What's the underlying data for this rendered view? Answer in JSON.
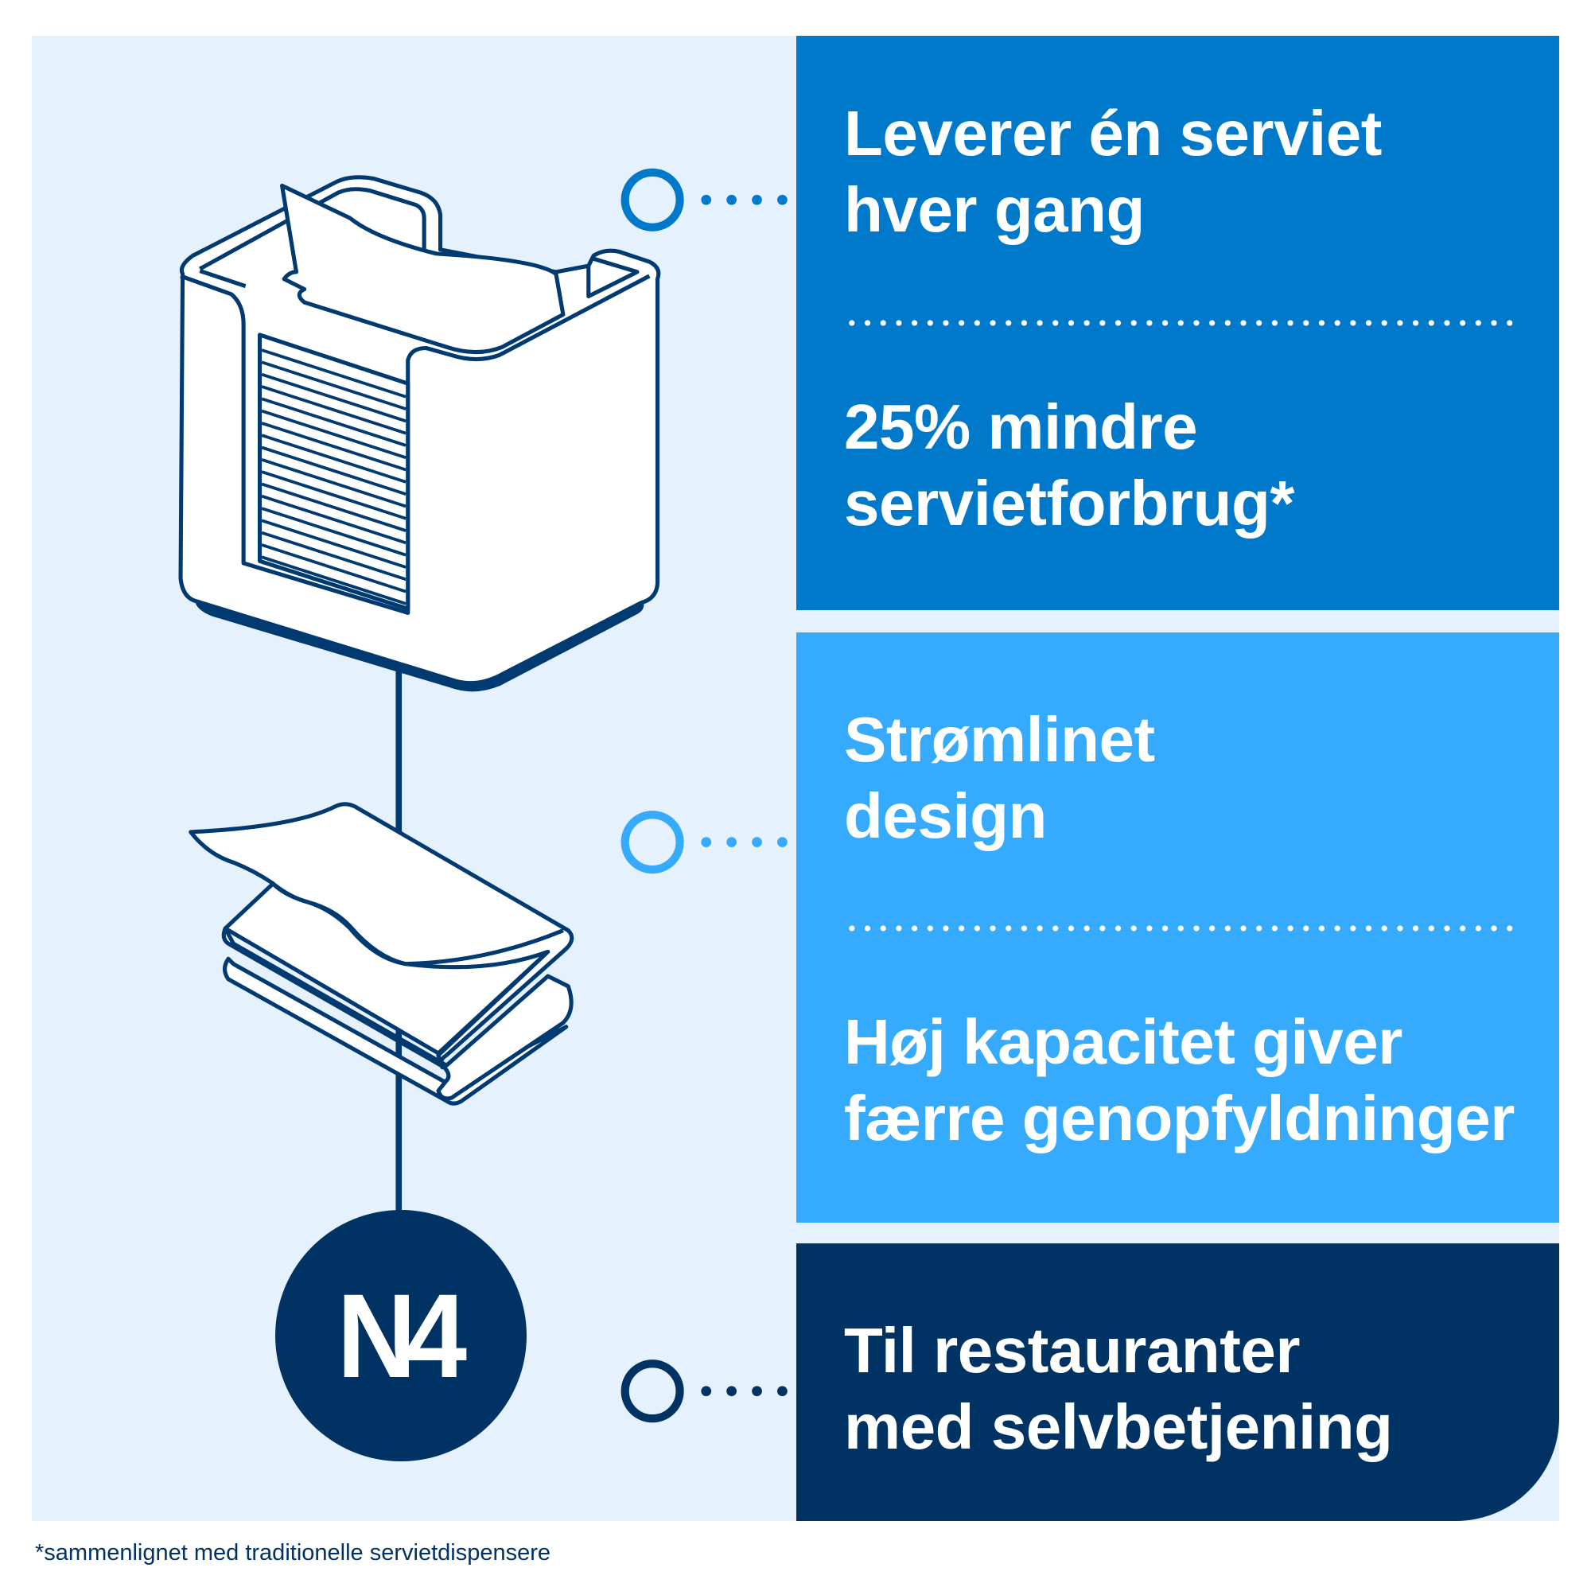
{
  "features": [
    {
      "lines": [
        "Leverer én serviet",
        "hver gang"
      ]
    },
    {
      "lines": [
        "25% mindre",
        "servietforbrug*"
      ]
    },
    {
      "lines": [
        "Strømlinet",
        "design"
      ]
    },
    {
      "lines": [
        "Høj kapacitet giver",
        "færre genopfyldninger"
      ]
    },
    {
      "lines": [
        "Til restauranter",
        "med selvbetjening"
      ]
    }
  ],
  "badge": "N4",
  "footnote": "*sammenlignet med traditionelle servietdispensere",
  "colors": {
    "background": "#E5F2FE",
    "panel_1": "#0079CB",
    "panel_2": "#36AAFD",
    "panel_3": "#003263",
    "outline": "#003A70"
  },
  "icons": [
    "napkin-dispenser-illustration",
    "folded-napkins-illustration",
    "circle-marker-icon"
  ]
}
